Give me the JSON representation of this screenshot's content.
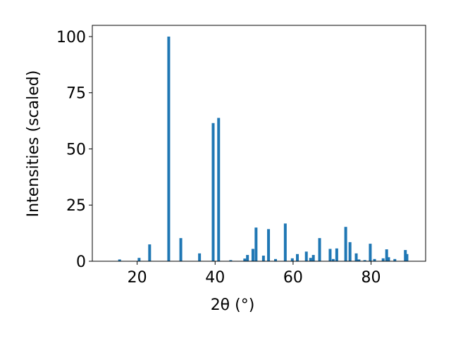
{
  "chart_data": {
    "type": "bar",
    "xlabel": "2θ (°)",
    "ylabel": "Intensities (scaled)",
    "x": [
      15.5,
      20.5,
      23.2,
      28.1,
      31.2,
      36.0,
      39.5,
      40.9,
      44.0,
      47.6,
      48.3,
      49.7,
      50.5,
      52.4,
      53.7,
      55.5,
      58.0,
      59.8,
      61.1,
      63.4,
      64.5,
      65.2,
      66.8,
      69.5,
      70.3,
      71.2,
      73.5,
      74.6,
      76.2,
      76.9,
      78.4,
      79.8,
      80.9,
      83.1,
      84.0,
      84.5,
      86.1,
      88.8,
      89.2
    ],
    "values": [
      0.8,
      1.5,
      7.5,
      100,
      10.3,
      3.5,
      61.5,
      63.8,
      0.5,
      1.2,
      2.8,
      5.5,
      15,
      2.5,
      14.3,
      1,
      16.8,
      1.3,
      3.2,
      4.3,
      1.5,
      2.8,
      10.3,
      5.5,
      1,
      5.7,
      15.3,
      8.5,
      3.5,
      0.8,
      0.5,
      7.8,
      1,
      1.3,
      5.3,
      1.8,
      1,
      5,
      3.2
    ],
    "color": "#1f77b4",
    "xlim": [
      8.5,
      94
    ],
    "ylim": [
      0,
      105
    ],
    "xticks": [
      20,
      40,
      60,
      80
    ],
    "yticks": [
      0,
      25,
      50,
      75,
      100
    ]
  }
}
